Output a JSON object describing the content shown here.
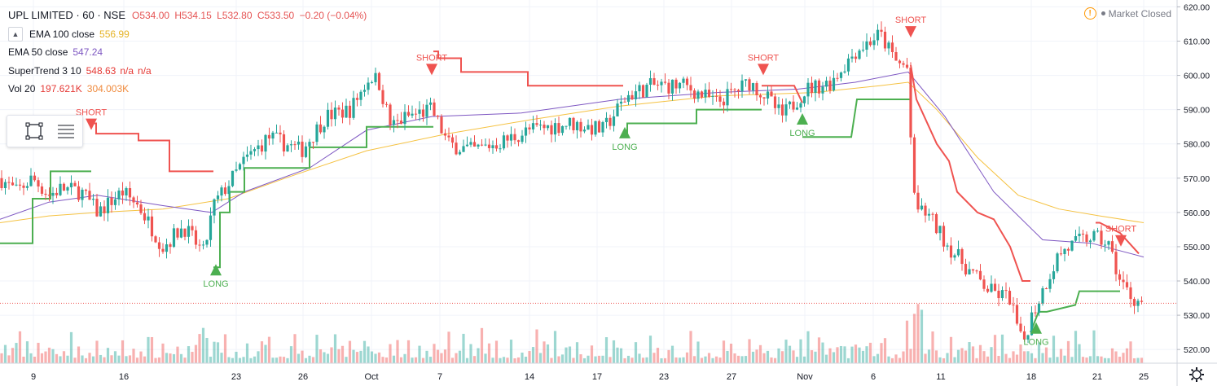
{
  "header": {
    "title": "UPL LIMITED · 60 · NSE",
    "ohlc": {
      "open": "O534.00",
      "high": "H534.15",
      "low": "L532.80",
      "close": "C533.50",
      "change": "−0.20 (−0.04%)"
    }
  },
  "indicators": [
    {
      "name": "EMA 100 close",
      "values": [
        "556.99"
      ],
      "colors": [
        "#f5c242"
      ]
    },
    {
      "name": "EMA 50 close",
      "values": [
        "547.24"
      ],
      "colors": [
        "#7e57c2"
      ]
    },
    {
      "name": "SuperTrend 3 10",
      "values": [
        "548.63",
        "n/a",
        "n/a"
      ],
      "colors": [
        "#e53935",
        "#e53935",
        "#e53935"
      ]
    },
    {
      "name": "Vol 20",
      "values": [
        "197.621K",
        "304.003K"
      ],
      "colors": [
        "#e53935",
        "#ef8a3d"
      ]
    }
  ],
  "market_status": "Market Closed",
  "icons": {
    "collapse": "chevron-up-icon",
    "warning": "alert-icon",
    "draw_rect": "rectangle-tool-icon",
    "menu": "list-menu-icon",
    "settings": "gear-icon"
  },
  "colors": {
    "up": "#26a69a",
    "down": "#ef5350",
    "supertrend_up": "#4caf50",
    "supertrend_down": "#ef5350",
    "ema100": "#f5c242",
    "ema50": "#7e57c2",
    "last_price": "#ef5350"
  },
  "chart_data": {
    "type": "candlestick",
    "y_ticks": [
      "620.00",
      "610.00",
      "600.00",
      "590.00",
      "580.00",
      "570.00",
      "560.00",
      "550.00",
      "540.00",
      "530.00",
      "520.00"
    ],
    "ylim": [
      516,
      622
    ],
    "x_ticks": [
      "9",
      "16",
      "23",
      "26",
      "Oct",
      "7",
      "14",
      "17",
      "23",
      "27",
      "Nov",
      "6",
      "11",
      "18",
      "21",
      "25"
    ],
    "last_price": "533.50",
    "price_waypoints": [
      [
        0,
        570
      ],
      [
        20,
        566
      ],
      [
        40,
        570
      ],
      [
        60,
        565
      ],
      [
        75,
        567
      ],
      [
        100,
        566
      ],
      [
        120,
        560
      ],
      [
        150,
        566
      ],
      [
        170,
        562
      ],
      [
        200,
        550
      ],
      [
        225,
        556
      ],
      [
        250,
        548
      ],
      [
        262,
        562
      ],
      [
        300,
        575
      ],
      [
        330,
        582
      ],
      [
        370,
        578
      ],
      [
        400,
        588
      ],
      [
        430,
        590
      ],
      [
        455,
        600
      ],
      [
        465,
        598
      ],
      [
        480,
        585
      ],
      [
        500,
        588
      ],
      [
        530,
        590
      ],
      [
        550,
        580
      ],
      [
        580,
        578
      ],
      [
        620,
        581
      ],
      [
        650,
        584
      ],
      [
        700,
        586
      ],
      [
        740,
        584
      ],
      [
        770,
        594
      ],
      [
        800,
        597
      ],
      [
        840,
        597
      ],
      [
        880,
        592
      ],
      [
        920,
        598
      ],
      [
        940,
        594
      ],
      [
        960,
        588
      ],
      [
        990,
        596
      ],
      [
        1020,
        598
      ],
      [
        1050,
        607
      ],
      [
        1080,
        612
      ],
      [
        1100,
        604
      ],
      [
        1115,
        602
      ],
      [
        1120,
        565
      ],
      [
        1140,
        559
      ],
      [
        1165,
        550
      ],
      [
        1190,
        543
      ],
      [
        1215,
        537
      ],
      [
        1240,
        535
      ],
      [
        1255,
        521
      ],
      [
        1265,
        529
      ],
      [
        1285,
        540
      ],
      [
        1300,
        548
      ],
      [
        1320,
        551
      ],
      [
        1340,
        553
      ],
      [
        1360,
        551
      ],
      [
        1375,
        540
      ],
      [
        1390,
        535
      ],
      [
        1404,
        533.5
      ]
    ],
    "ema100_waypoints": [
      [
        0,
        557
      ],
      [
        60,
        559
      ],
      [
        120,
        560
      ],
      [
        200,
        561
      ],
      [
        280,
        564
      ],
      [
        350,
        570
      ],
      [
        450,
        578
      ],
      [
        550,
        583
      ],
      [
        650,
        587
      ],
      [
        760,
        591
      ],
      [
        880,
        594
      ],
      [
        1000,
        595
      ],
      [
        1080,
        597
      ],
      [
        1115,
        598
      ],
      [
        1150,
        590
      ],
      [
        1200,
        576
      ],
      [
        1250,
        565
      ],
      [
        1300,
        561
      ],
      [
        1350,
        559
      ],
      [
        1404,
        557
      ]
    ],
    "ema50_waypoints": [
      [
        0,
        558
      ],
      [
        60,
        563
      ],
      [
        120,
        565
      ],
      [
        200,
        562
      ],
      [
        260,
        560
      ],
      [
        300,
        566
      ],
      [
        380,
        573
      ],
      [
        450,
        584
      ],
      [
        530,
        588
      ],
      [
        640,
        589
      ],
      [
        760,
        593
      ],
      [
        880,
        595
      ],
      [
        980,
        596
      ],
      [
        1050,
        598
      ],
      [
        1115,
        601
      ],
      [
        1160,
        588
      ],
      [
        1220,
        566
      ],
      [
        1280,
        552
      ],
      [
        1340,
        551
      ],
      [
        1404,
        547
      ]
    ],
    "supertrend": [
      {
        "dir": "up",
        "pts": [
          [
            0,
            551
          ],
          [
            40,
            551
          ],
          [
            40,
            564
          ],
          [
            62,
            564
          ],
          [
            62,
            572
          ],
          [
            112,
            572
          ]
        ]
      },
      {
        "dir": "down",
        "pts": [
          [
            112,
            586
          ],
          [
            118,
            586
          ],
          [
            118,
            583
          ],
          [
            170,
            583
          ],
          [
            170,
            581
          ],
          [
            208,
            581
          ],
          [
            208,
            572
          ],
          [
            262,
            572
          ]
        ]
      },
      {
        "dir": "up",
        "pts": [
          [
            262,
            544
          ],
          [
            270,
            544
          ],
          [
            270,
            560
          ],
          [
            282,
            560
          ],
          [
            282,
            566
          ],
          [
            300,
            566
          ],
          [
            300,
            573
          ],
          [
            380,
            573
          ],
          [
            380,
            579
          ],
          [
            450,
            579
          ],
          [
            450,
            585
          ],
          [
            532,
            585
          ]
        ]
      },
      {
        "dir": "down",
        "pts": [
          [
            532,
            607
          ],
          [
            538,
            607
          ],
          [
            538,
            605
          ],
          [
            566,
            605
          ],
          [
            566,
            601
          ],
          [
            648,
            601
          ],
          [
            648,
            597
          ],
          [
            765,
            597
          ]
        ]
      },
      {
        "dir": "up",
        "pts": [
          [
            765,
            582
          ],
          [
            770,
            582
          ],
          [
            770,
            586
          ],
          [
            855,
            586
          ],
          [
            855,
            590
          ],
          [
            935,
            590
          ]
        ]
      },
      {
        "dir": "down",
        "pts": [
          [
            935,
            597
          ],
          [
            975,
            597
          ],
          [
            985,
            592
          ]
        ]
      },
      {
        "dir": "up",
        "pts": [
          [
            985,
            582
          ],
          [
            1045,
            582
          ],
          [
            1052,
            593
          ],
          [
            1118,
            593
          ]
        ]
      },
      {
        "dir": "down",
        "pts": [
          [
            1118,
            603
          ],
          [
            1125,
            593
          ],
          [
            1150,
            580
          ],
          [
            1165,
            575
          ],
          [
            1175,
            566
          ],
          [
            1200,
            560
          ],
          [
            1220,
            558
          ],
          [
            1240,
            550
          ],
          [
            1255,
            540
          ],
          [
            1265,
            540
          ]
        ]
      },
      {
        "dir": "up",
        "pts": [
          [
            1265,
            525
          ],
          [
            1275,
            531
          ],
          [
            1285,
            531
          ],
          [
            1320,
            533
          ],
          [
            1325,
            537
          ],
          [
            1375,
            537
          ]
        ]
      },
      {
        "dir": "down",
        "pts": [
          [
            1345,
            557
          ],
          [
            1350,
            557
          ],
          [
            1375,
            554
          ],
          [
            1398,
            548
          ]
        ]
      }
    ],
    "signals": [
      {
        "type": "SHORT",
        "index": 112,
        "price": 585
      },
      {
        "type": "LONG",
        "index": 265,
        "price": 544
      },
      {
        "type": "SHORT",
        "index": 530,
        "price": 601
      },
      {
        "type": "LONG",
        "index": 767,
        "price": 584
      },
      {
        "type": "SHORT",
        "index": 937,
        "price": 601
      },
      {
        "type": "LONG",
        "index": 985,
        "price": 588
      },
      {
        "type": "SHORT",
        "index": 1118,
        "price": 612
      },
      {
        "type": "LONG",
        "index": 1272,
        "price": 527
      },
      {
        "type": "SHORT",
        "index": 1376,
        "price": 551
      }
    ]
  }
}
